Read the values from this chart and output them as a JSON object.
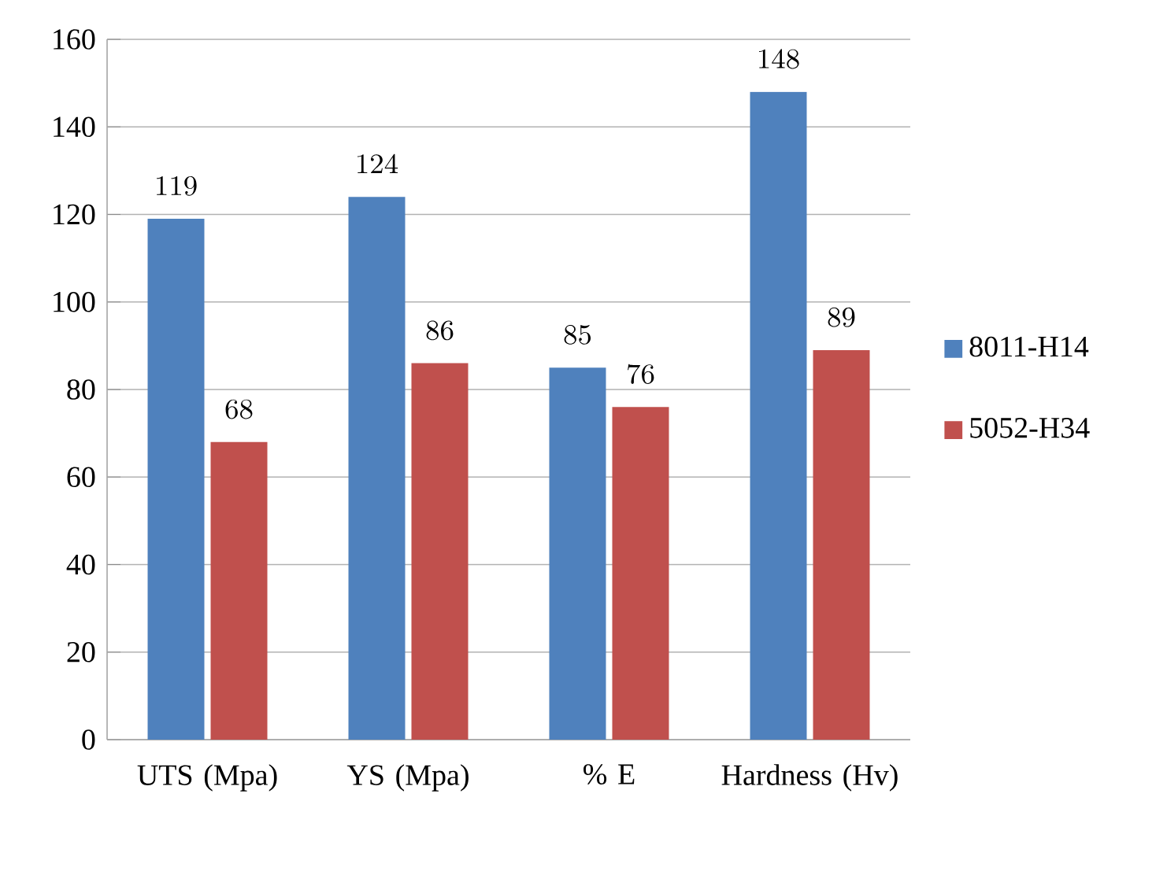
{
  "chart_data": {
    "type": "bar",
    "categories": [
      "UTS (Mpa)",
      "YS (Mpa)",
      "% E",
      "Hardness (Hv)"
    ],
    "series": [
      {
        "name": "8011-H14",
        "color": "#4f81bd",
        "values": [
          119,
          124,
          85,
          148
        ]
      },
      {
        "name": "5052-H34",
        "color": "#c0504d",
        "values": [
          68,
          86,
          76,
          89
        ]
      }
    ],
    "ylim": [
      0,
      160
    ],
    "yticks": [
      0,
      20,
      40,
      60,
      80,
      100,
      120,
      140,
      160
    ],
    "grid": "y",
    "legend": "right",
    "data_labels": true
  }
}
